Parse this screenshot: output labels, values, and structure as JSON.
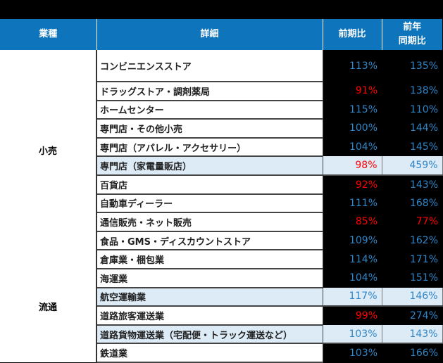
{
  "headers": {
    "category": "業種",
    "detail": "詳細",
    "qoq": "前期比",
    "yoy_line1": "前年",
    "yoy_line2": "同期比"
  },
  "colors": {
    "header": "#0E74BC",
    "positive": "#2E86C8",
    "negative": "#FF0000",
    "highlight": "#DDEBF7"
  },
  "groups": [
    {
      "name": "小売",
      "rows": [
        {
          "detail": "コンビニエンスストア",
          "qoq": "113%",
          "yoy": "135%"
        },
        {
          "detail": "ドラッグストア・調剤薬局",
          "qoq": "91%",
          "yoy": "138%"
        },
        {
          "detail": "ホームセンター",
          "qoq": "115%",
          "yoy": "110%"
        },
        {
          "detail": "専門店・その他小売",
          "qoq": "100%",
          "yoy": "144%"
        },
        {
          "detail": "専門店（アパレル・アクセサリー）",
          "qoq": "104%",
          "yoy": "145%"
        },
        {
          "detail": "専門店（家電量販店）",
          "qoq": "98%",
          "yoy": "459%",
          "highlight": true
        },
        {
          "detail": "百貨店",
          "qoq": "92%",
          "yoy": "143%"
        },
        {
          "detail": "自動車ディーラー",
          "qoq": "111%",
          "yoy": "168%"
        },
        {
          "detail": "通信販売・ネット販売",
          "qoq": "85%",
          "yoy": "77%"
        },
        {
          "detail": "食品・GMS・ディスカウントストア",
          "qoq": "109%",
          "yoy": "162%"
        }
      ]
    },
    {
      "name": "流通",
      "rows": [
        {
          "detail": "倉庫業・梱包業",
          "qoq": "114%",
          "yoy": "171%"
        },
        {
          "detail": "海運業",
          "qoq": "104%",
          "yoy": "151%"
        },
        {
          "detail": "航空運輸業",
          "qoq": "117%",
          "yoy": "146%",
          "highlight": true
        },
        {
          "detail": "道路旅客運送業",
          "qoq": "99%",
          "yoy": "274%"
        },
        {
          "detail": "道路貨物運送業（宅配便・トラック運送など）",
          "qoq": "103%",
          "yoy": "143%",
          "highlight": true
        },
        {
          "detail": "鉄道業",
          "qoq": "103%",
          "yoy": "166%"
        }
      ]
    }
  ]
}
